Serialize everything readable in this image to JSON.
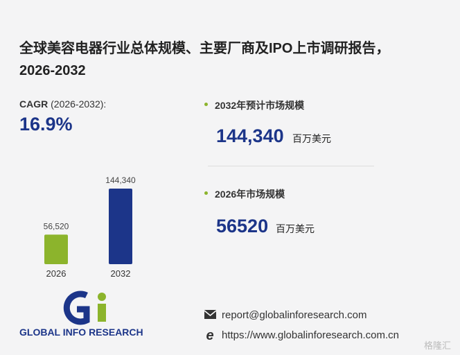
{
  "title": "全球美容电器行业总体规模、主要厂商及IPO上市调研报告，2026-2032",
  "cagr": {
    "label": "CAGR",
    "period": "(2026-2032):",
    "value": "16.9%"
  },
  "stats": [
    {
      "label": "2032年预计市场规模",
      "value": "144,340",
      "unit": "百万美元"
    },
    {
      "label": "2026年市场规模",
      "value": "56520",
      "unit": "百万美元"
    }
  ],
  "chart_data": {
    "type": "bar",
    "categories": [
      "2026",
      "2032"
    ],
    "values": [
      56520,
      144340
    ],
    "value_labels": [
      "56,520",
      "144,340"
    ],
    "colors": [
      "#8cb42c",
      "#1c3589"
    ]
  },
  "logo": {
    "text": "GLOBAL INFO RESEARCH"
  },
  "contact": {
    "email": "report@globalinforesearch.com",
    "website": "https://www.globalinforesearch.com.cn"
  },
  "watermark": "格隆汇"
}
